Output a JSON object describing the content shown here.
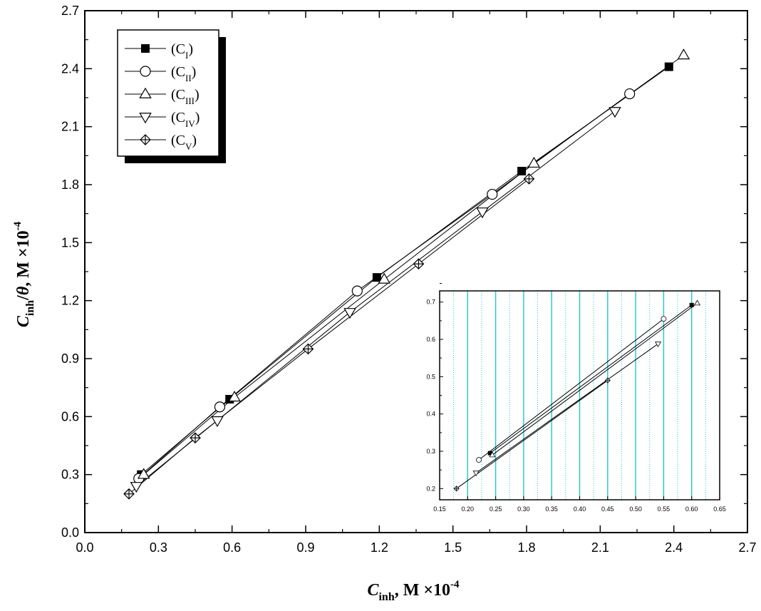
{
  "chart_data": [
    {
      "type": "line",
      "title": "",
      "xlabel": {
        "main": "C",
        "sub": "inh",
        "rest": ", M ×10",
        "sup": "-4"
      },
      "ylabel": {
        "main": "C",
        "sub": "inh",
        "rest": "/θ, M ×10",
        "sup": "-4"
      },
      "xlim": [
        0.0,
        2.7
      ],
      "ylim": [
        0.0,
        2.7
      ],
      "xticks": [
        "0.0",
        "0.3",
        "0.6",
        "0.9",
        "1.2",
        "1.5",
        "1.8",
        "2.1",
        "2.4",
        "2.7"
      ],
      "yticks": [
        "0.0",
        "0.3",
        "0.6",
        "0.9",
        "1.2",
        "1.5",
        "1.8",
        "2.1",
        "2.4",
        "2.7"
      ],
      "grid": false,
      "legend_position": "top-left",
      "series": [
        {
          "name": "(C",
          "sub": "I",
          "close": ")",
          "marker": "filled-square",
          "x": [
            0.23,
            0.59,
            1.19,
            1.78,
            2.38
          ],
          "y": [
            0.3,
            0.69,
            1.32,
            1.87,
            2.41
          ]
        },
        {
          "name": "(C",
          "sub": "II",
          "close": ")",
          "marker": "open-circle",
          "x": [
            0.22,
            0.55,
            1.11,
            1.66,
            2.22
          ],
          "y": [
            0.28,
            0.65,
            1.25,
            1.75,
            2.27
          ]
        },
        {
          "name": "(C",
          "sub": "III",
          "close": ")",
          "marker": "open-triangle-up",
          "x": [
            0.24,
            0.61,
            1.22,
            1.83,
            2.44
          ],
          "y": [
            0.3,
            0.7,
            1.31,
            1.91,
            2.47
          ]
        },
        {
          "name": "(C",
          "sub": "IV",
          "close": ")",
          "marker": "open-triangle-down",
          "x": [
            0.21,
            0.54,
            1.08,
            1.62,
            2.16
          ],
          "y": [
            0.24,
            0.58,
            1.14,
            1.66,
            2.18
          ]
        },
        {
          "name": "(C",
          "sub": "V",
          "close": ")",
          "marker": "crossed-diamond",
          "x": [
            0.18,
            0.45,
            0.91,
            1.36,
            1.81
          ],
          "y": [
            0.2,
            0.49,
            0.95,
            1.39,
            1.83
          ]
        }
      ]
    },
    {
      "type": "line",
      "title": "",
      "xlabel": "",
      "ylabel": "",
      "xlim": [
        0.15,
        0.65
      ],
      "ylim": [
        0.17,
        0.73
      ],
      "xticks": [
        "0.15",
        "0.20",
        "0.25",
        "0.30",
        "0.35",
        "0.40",
        "0.45",
        "0.50",
        "0.55",
        "0.60",
        "0.65"
      ],
      "yticks": [
        "0.2",
        "0.3",
        "0.4",
        "0.5",
        "0.6",
        "0.7"
      ],
      "grid": true,
      "grid_color": "#1fc8d2",
      "legend_position": "none",
      "series": [
        {
          "name": "",
          "marker": "filled-square",
          "x": [
            0.24,
            0.6
          ],
          "y": [
            0.295,
            0.692
          ]
        },
        {
          "name": "",
          "marker": "open-circle",
          "x": [
            0.22,
            0.55
          ],
          "y": [
            0.277,
            0.655
          ]
        },
        {
          "name": "",
          "marker": "open-triangle-up",
          "x": [
            0.244,
            0.61
          ],
          "y": [
            0.29,
            0.697
          ]
        },
        {
          "name": "",
          "marker": "open-triangle-down",
          "x": [
            0.215,
            0.54
          ],
          "y": [
            0.242,
            0.588
          ]
        },
        {
          "name": "",
          "marker": "crossed-diamond",
          "x": [
            0.18,
            0.45
          ],
          "y": [
            0.2,
            0.49
          ]
        }
      ]
    }
  ]
}
